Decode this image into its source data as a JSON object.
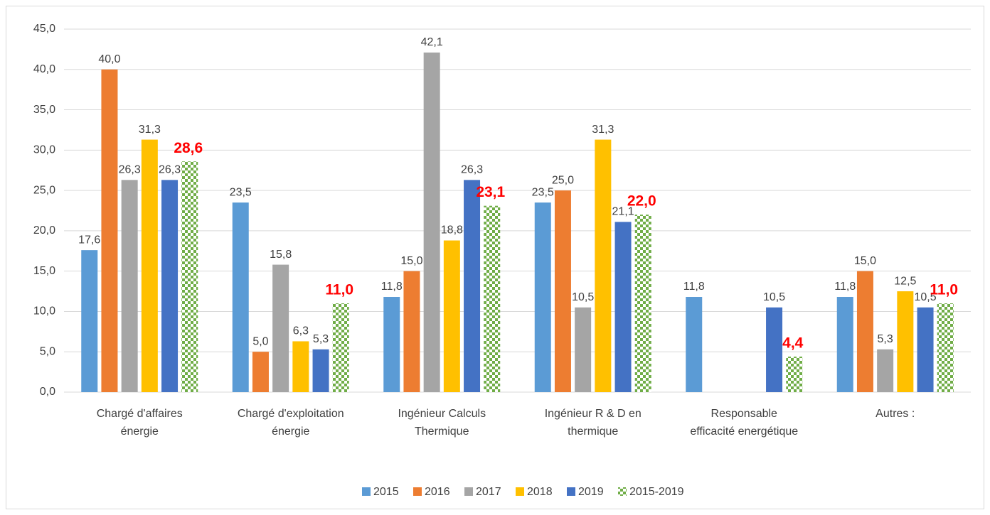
{
  "chart_data": {
    "type": "bar",
    "categories": [
      "Chargé d'affaires énergie",
      "Chargé d'exploitation énergie",
      "Ingénieur Calculs Thermique",
      "Ingénieur R & D en thermique",
      "Responsable efficacité energétique",
      "Autres :"
    ],
    "series": [
      {
        "name": "2015",
        "color": "#5b9bd5",
        "values": [
          17.6,
          23.5,
          11.8,
          23.5,
          11.8,
          11.8
        ],
        "value_labels": [
          "17,6",
          "23,5",
          "11,8",
          "23,5",
          "11,8",
          "11,8"
        ]
      },
      {
        "name": "2016",
        "color": "#ed7d31",
        "values": [
          40.0,
          5.0,
          15.0,
          25.0,
          null,
          15.0
        ],
        "value_labels": [
          "40,0",
          "5,0",
          "15,0",
          "25,0",
          null,
          "15,0"
        ]
      },
      {
        "name": "2017",
        "color": "#a5a5a5",
        "values": [
          26.3,
          15.8,
          42.1,
          10.5,
          null,
          5.3
        ],
        "value_labels": [
          "26,3",
          "15,8",
          "42,1",
          "10,5",
          null,
          "5,3"
        ]
      },
      {
        "name": "2018",
        "color": "#ffc000",
        "values": [
          31.3,
          6.3,
          18.8,
          31.3,
          null,
          12.5
        ],
        "value_labels": [
          "31,3",
          "6,3",
          "18,8",
          "31,3",
          null,
          "12,5"
        ]
      },
      {
        "name": "2019",
        "color": "#4472c4",
        "values": [
          26.3,
          5.3,
          26.3,
          21.1,
          10.5,
          10.5
        ],
        "value_labels": [
          "26,3",
          "5,3",
          "26,3",
          "21,1",
          "10,5",
          "10,5"
        ]
      },
      {
        "name": "2015-2019",
        "color": "#70ad47",
        "pattern": "checkerboard",
        "label_color": "#ff0000",
        "values": [
          28.6,
          11.0,
          23.1,
          22.0,
          4.4,
          11.0
        ],
        "value_labels": [
          "28,6",
          "11,0",
          "23,1",
          "22,0",
          "4,4",
          "11,0"
        ]
      }
    ],
    "ylim": [
      0,
      45
    ],
    "yticks": [
      {
        "value": 0,
        "label": "0,0"
      },
      {
        "value": 5,
        "label": "5,0"
      },
      {
        "value": 10,
        "label": "10,0"
      },
      {
        "value": 15,
        "label": "15,0"
      },
      {
        "value": 20,
        "label": "20,0"
      },
      {
        "value": 25,
        "label": "25,0"
      },
      {
        "value": 30,
        "label": "30,0"
      },
      {
        "value": 35,
        "label": "35,0"
      },
      {
        "value": 40,
        "label": "40,0"
      },
      {
        "value": 45,
        "label": "45,0"
      }
    ],
    "grid": true,
    "legend": "bottom"
  }
}
